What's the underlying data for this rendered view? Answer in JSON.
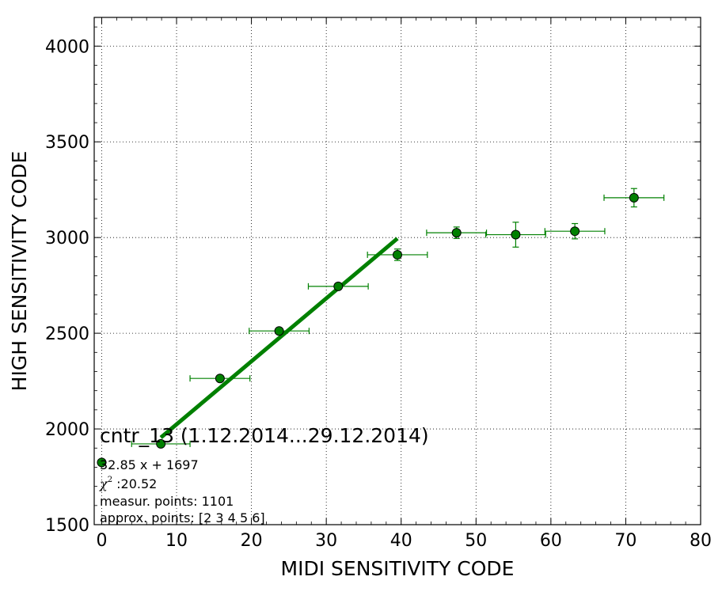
{
  "chart_data": {
    "type": "scatter",
    "xlabel": "MIDI SENSITIVITY CODE",
    "ylabel": "HIGH SENSITIVITY CODE",
    "xlim": [
      -1,
      80
    ],
    "ylim": [
      1500,
      4150
    ],
    "xticks": [
      0,
      10,
      20,
      30,
      40,
      50,
      60,
      70,
      80
    ],
    "yticks": [
      1500,
      2000,
      2500,
      3000,
      3500,
      4000
    ],
    "grid": true,
    "marker_color": "#008000",
    "fit_color": "#008000",
    "points": [
      {
        "x": 0,
        "y": 1825,
        "xerr": 0,
        "yerr": 0
      },
      {
        "x": 7.9,
        "y": 1922,
        "xerr": 3.9,
        "yerr": 10
      },
      {
        "x": 15.8,
        "y": 2264,
        "xerr": 4.0,
        "yerr": 12
      },
      {
        "x": 23.7,
        "y": 2512,
        "xerr": 4.0,
        "yerr": 15
      },
      {
        "x": 31.6,
        "y": 2745,
        "xerr": 4.0,
        "yerr": 15
      },
      {
        "x": 39.5,
        "y": 2910,
        "xerr": 4.0,
        "yerr": 30
      },
      {
        "x": 47.4,
        "y": 3025,
        "xerr": 4.0,
        "yerr": 30
      },
      {
        "x": 55.3,
        "y": 3015,
        "xerr": 4.0,
        "yerr": 65
      },
      {
        "x": 63.2,
        "y": 3033,
        "xerr": 4.0,
        "yerr": 40
      },
      {
        "x": 71.1,
        "y": 3208,
        "xerr": 4.0,
        "yerr": 48
      }
    ],
    "fit": {
      "x_start": 7.9,
      "x_end": 39.5,
      "y_start": 1955,
      "y_end": 2995
    }
  },
  "annotation": {
    "title": "cntr_13 (1.12.2014...29.12.2014)",
    "equation": "32.85 x + 1697",
    "chi_symbol": "χ",
    "chi_sup": "2",
    "chi_value": " :20.52",
    "measur_points": "measur. points: 1101",
    "approx_points": "approx. points: [2 3 4 5 6]"
  }
}
